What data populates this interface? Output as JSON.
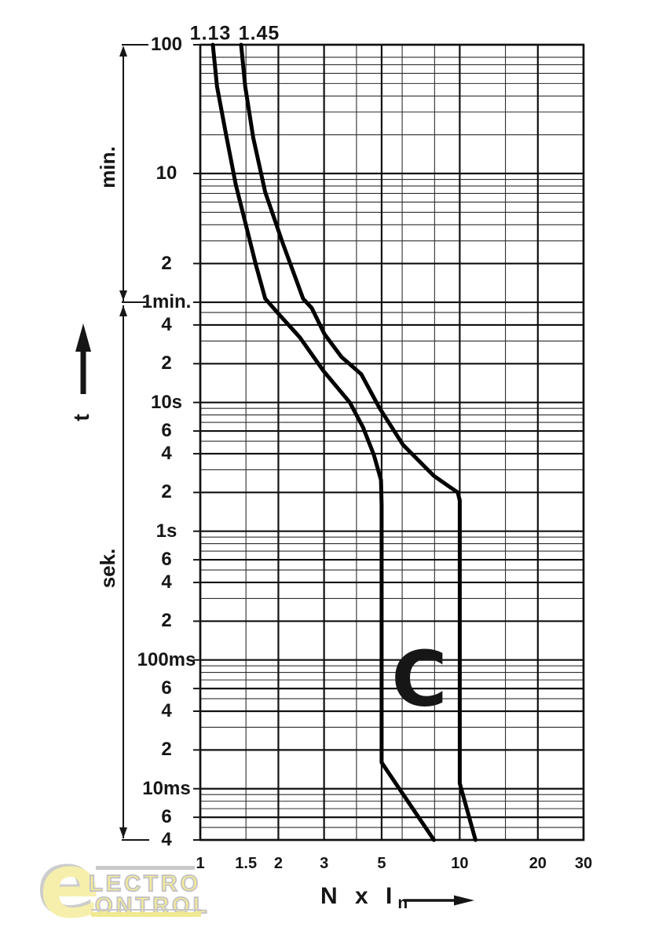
{
  "page": {
    "background": "#ffffff",
    "ink": "#161616"
  },
  "chart_data": {
    "type": "line",
    "name": "C tripping characteristic (time-current curve)",
    "x_scale": "log",
    "y_scale": "log",
    "xlabel": "N x In",
    "xlabel_parts": {
      "main": "N x I",
      "sub": "n"
    },
    "ylabel": "t",
    "y_units": [
      "min.",
      "sek."
    ],
    "xlim": [
      1,
      30
    ],
    "ylim_seconds": [
      0.004,
      6000
    ],
    "grid": true,
    "tripping_class_label": "C",
    "curve_color": "#000000",
    "grid_color_major": "#111111",
    "grid_color_minor": "#2e2e2e",
    "x_tick_labels": [
      {
        "label": "1",
        "m": 1
      },
      {
        "label": "1.5",
        "m": 1.5
      },
      {
        "label": "2",
        "m": 2
      },
      {
        "label": "3",
        "m": 3
      },
      {
        "label": "5",
        "m": 5
      },
      {
        "label": "10",
        "m": 10
      },
      {
        "label": "20",
        "m": 20
      },
      {
        "label": "30",
        "m": 30
      }
    ],
    "x_gridlines_major": [
      1,
      2,
      3,
      5,
      10,
      20,
      30
    ],
    "x_gridlines_minor": [
      1.5,
      4,
      6,
      8,
      15
    ],
    "y_tick_labels": [
      {
        "label": "100",
        "t": 6000
      },
      {
        "label": "10",
        "t": 600
      },
      {
        "label": "2",
        "t": 120
      },
      {
        "label": "1min.",
        "t": 60
      },
      {
        "label": "4",
        "t": 40
      },
      {
        "label": "2",
        "t": 20
      },
      {
        "label": "10s",
        "t": 10
      },
      {
        "label": "6",
        "t": 6
      },
      {
        "label": "4",
        "t": 4
      },
      {
        "label": "2",
        "t": 2
      },
      {
        "label": "1s",
        "t": 1
      },
      {
        "label": "6",
        "t": 0.6
      },
      {
        "label": "4",
        "t": 0.4
      },
      {
        "label": "2",
        "t": 0.2
      },
      {
        "label": "100ms",
        "t": 0.1
      },
      {
        "label": "6",
        "t": 0.06
      },
      {
        "label": "4",
        "t": 0.04
      },
      {
        "label": "2",
        "t": 0.02
      },
      {
        "label": "10ms",
        "t": 0.01
      },
      {
        "label": "6",
        "t": 0.006
      },
      {
        "label": "4",
        "t": 0.004
      }
    ],
    "y_gridlines_major": [
      6000,
      600,
      120,
      60,
      40,
      20,
      10,
      6,
      4,
      2,
      1,
      0.6,
      0.4,
      0.2,
      0.1,
      0.06,
      0.04,
      0.02,
      0.01,
      0.006,
      0.004
    ],
    "y_gridlines_minor": [
      4800,
      4200,
      3600,
      3000,
      2400,
      1800,
      1200,
      540,
      480,
      420,
      360,
      300,
      240,
      180,
      50,
      30,
      9,
      8,
      7,
      5,
      3,
      0.9,
      0.8,
      0.7,
      0.5,
      0.3,
      0.09,
      0.08,
      0.07,
      0.05,
      0.03,
      0.009,
      0.008,
      0.007,
      0.005
    ],
    "curve_start_labels": [
      {
        "text": "1.13"
      },
      {
        "text": "1.45"
      }
    ],
    "series": [
      {
        "name": "lower-limit-curve-1.13",
        "points": [
          [
            1.118,
            6000
          ],
          [
            1.16,
            2850
          ],
          [
            1.25,
            1280
          ],
          [
            1.37,
            492
          ],
          [
            1.52,
            214
          ],
          [
            1.64,
            116
          ],
          [
            1.78,
            64
          ],
          [
            1.98,
            50
          ],
          [
            2.42,
            32
          ],
          [
            2.99,
            17.5
          ],
          [
            3.77,
            10
          ],
          [
            4.24,
            6.4
          ],
          [
            4.67,
            3.9
          ],
          [
            4.97,
            2.5
          ],
          [
            5.0,
            1.6
          ],
          [
            5.0,
            0.016
          ],
          [
            7.95,
            0.004
          ]
        ]
      },
      {
        "name": "upper-limit-curve-1.45",
        "points": [
          [
            1.437,
            6000
          ],
          [
            1.49,
            2850
          ],
          [
            1.6,
            1140
          ],
          [
            1.78,
            430
          ],
          [
            2.08,
            172
          ],
          [
            2.49,
            64
          ],
          [
            2.69,
            54
          ],
          [
            3.01,
            34
          ],
          [
            3.5,
            22.6
          ],
          [
            4.17,
            16.6
          ],
          [
            4.9,
            9.1
          ],
          [
            6.04,
            4.7
          ],
          [
            7.93,
            2.7
          ],
          [
            9.17,
            2.2
          ],
          [
            9.83,
            2.0
          ],
          [
            10.0,
            1.73
          ],
          [
            10.0,
            0.011
          ],
          [
            11.5,
            0.004
          ]
        ]
      }
    ]
  },
  "watermark": {
    "e_letter": "e",
    "line1": "LECTRO",
    "line2": "ONTROL",
    "yellow": "#f6ea80",
    "gray": "#b9b9b9"
  }
}
